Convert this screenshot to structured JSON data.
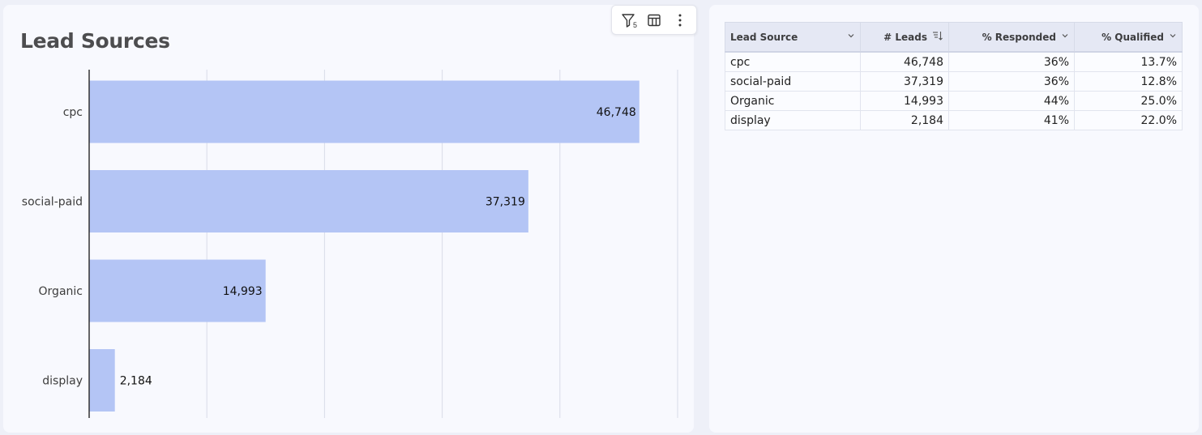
{
  "chart_card": {
    "title": "Lead Sources",
    "toolbar": {
      "filter_count": "5",
      "icons": [
        "filter-icon",
        "table-layout-icon",
        "more-vertical-icon"
      ]
    }
  },
  "chart_data": {
    "type": "bar",
    "orientation": "horizontal",
    "title": "Lead Sources",
    "categories": [
      "cpc",
      "social-paid",
      "Organic",
      "display"
    ],
    "values": [
      46748,
      37319,
      14993,
      2184
    ],
    "value_labels": [
      "46,748",
      "37,319",
      "14,993",
      "2,184"
    ],
    "xlim": [
      0,
      50000
    ],
    "grid": true,
    "bar_color": "#b4c5f5"
  },
  "table": {
    "headers": [
      "Lead Source",
      "# Leads",
      "% Responded",
      "% Qualified"
    ],
    "rows": [
      [
        "cpc",
        "46,748",
        "36%",
        "13.7%"
      ],
      [
        "social-paid",
        "37,319",
        "36%",
        "12.8%"
      ],
      [
        "Organic",
        "14,993",
        "44%",
        "25.0%"
      ],
      [
        "display",
        "2,184",
        "41%",
        "22.0%"
      ]
    ]
  }
}
